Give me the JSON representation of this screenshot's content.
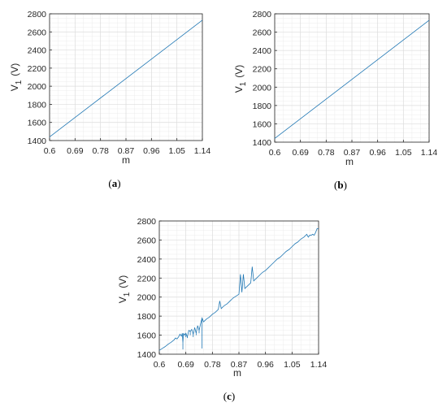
{
  "chart_data": [
    {
      "type": "line",
      "panel": "a",
      "caption": "(a)",
      "caption_letter": "a",
      "xlabel": "m",
      "ylabel_main": "V",
      "ylabel_sub": "1",
      "ylabel_unit": "(V)",
      "xlim": [
        0.6,
        1.14
      ],
      "ylim": [
        1400,
        2800
      ],
      "xticks": [
        0.6,
        0.69,
        0.78,
        0.87,
        0.96,
        1.05,
        1.14
      ],
      "xtick_labels": [
        "0.6",
        "0.69",
        "0.78",
        "0.87",
        "0.96",
        "1.05",
        "1.14"
      ],
      "yticks": [
        1400,
        1600,
        1800,
        2000,
        2200,
        2400,
        2600,
        2800
      ],
      "ytick_labels": [
        "1400",
        "1600",
        "1800",
        "2000",
        "2200",
        "2400",
        "2600",
        "2800"
      ],
      "grid": true,
      "series": [
        {
          "x": [
            0.6,
            1.14
          ],
          "y": [
            1440,
            2730
          ]
        }
      ]
    },
    {
      "type": "line",
      "panel": "b",
      "caption": "(b)",
      "caption_letter": "b",
      "xlabel": "m",
      "ylabel_main": "V",
      "ylabel_sub": "1",
      "ylabel_unit": "(V)",
      "xlim": [
        0.6,
        1.14
      ],
      "ylim": [
        1400,
        2800
      ],
      "xticks": [
        0.6,
        0.69,
        0.78,
        0.87,
        0.96,
        1.05,
        1.14
      ],
      "xtick_labels": [
        "0.6",
        "0.69",
        "0.78",
        "0.87",
        "0.96",
        "1.05",
        "1.14"
      ],
      "yticks": [
        1400,
        1600,
        1800,
        2000,
        2200,
        2400,
        2600,
        2800
      ],
      "ytick_labels": [
        "1400",
        "1600",
        "1800",
        "2000",
        "2200",
        "2400",
        "2600",
        "2800"
      ],
      "grid": true,
      "series": [
        {
          "x": [
            0.6,
            1.14
          ],
          "y": [
            1440,
            2730
          ]
        }
      ]
    },
    {
      "type": "line",
      "panel": "c",
      "caption": "(c)",
      "caption_letter": "c",
      "xlabel": "m",
      "ylabel_main": "V",
      "ylabel_sub": "1",
      "ylabel_unit": "(V)",
      "xlim": [
        0.6,
        1.14
      ],
      "ylim": [
        1400,
        2800
      ],
      "xticks": [
        0.6,
        0.69,
        0.78,
        0.87,
        0.96,
        1.05,
        1.14
      ],
      "xtick_labels": [
        "0.6",
        "0.69",
        "0.78",
        "0.87",
        "0.96",
        "1.05",
        "1.14"
      ],
      "yticks": [
        1400,
        1600,
        1800,
        2000,
        2200,
        2400,
        2600,
        2800
      ],
      "ytick_labels": [
        "1400",
        "1600",
        "1800",
        "2000",
        "2200",
        "2400",
        "2600",
        "2800"
      ],
      "grid": true,
      "series": [
        {
          "x": [
            0.6,
            0.61,
            0.62,
            0.63,
            0.64,
            0.65,
            0.655,
            0.66,
            0.665,
            0.67,
            0.675,
            0.678,
            0.68,
            0.682,
            0.685,
            0.69,
            0.695,
            0.7,
            0.705,
            0.71,
            0.715,
            0.72,
            0.725,
            0.73,
            0.735,
            0.74,
            0.745,
            0.75,
            0.76,
            0.77,
            0.78,
            0.79,
            0.8,
            0.805,
            0.81,
            0.82,
            0.83,
            0.84,
            0.85,
            0.86,
            0.87,
            0.875,
            0.88,
            0.885,
            0.89,
            0.9,
            0.91,
            0.915,
            0.92,
            0.93,
            0.94,
            0.95,
            0.96,
            0.97,
            0.98,
            0.99,
            1.0,
            1.01,
            1.02,
            1.03,
            1.04,
            1.05,
            1.06,
            1.07,
            1.08,
            1.09,
            1.1,
            1.105,
            1.11,
            1.115,
            1.12,
            1.125,
            1.13,
            1.135,
            1.14
          ],
          "y": [
            1440,
            1460,
            1480,
            1505,
            1525,
            1550,
            1570,
            1560,
            1580,
            1610,
            1590,
            1620,
            1520,
            1620,
            1600,
            1620,
            1580,
            1650,
            1640,
            1660,
            1610,
            1680,
            1620,
            1700,
            1650,
            1720,
            1780,
            1740,
            1770,
            1790,
            1820,
            1840,
            1870,
            1960,
            1880,
            1910,
            1930,
            1960,
            1990,
            2010,
            2030,
            2240,
            2050,
            2240,
            2090,
            2120,
            2150,
            2320,
            2170,
            2200,
            2230,
            2260,
            2280,
            2310,
            2340,
            2370,
            2400,
            2420,
            2450,
            2480,
            2500,
            2530,
            2560,
            2580,
            2610,
            2630,
            2660,
            2630,
            2650,
            2650,
            2660,
            2650,
            2680,
            2720,
            2720
          ]
        }
      ],
      "spikes": [
        {
          "x": 0.66,
          "y": 1560
        },
        {
          "x": 0.675,
          "y": 1590
        },
        {
          "x": 0.68,
          "y": 1450
        },
        {
          "x": 0.69,
          "y": 1580
        },
        {
          "x": 0.695,
          "y": 1570
        },
        {
          "x": 0.705,
          "y": 1600
        },
        {
          "x": 0.715,
          "y": 1580
        },
        {
          "x": 0.725,
          "y": 1600
        },
        {
          "x": 0.735,
          "y": 1620
        },
        {
          "x": 0.745,
          "y": 1460
        }
      ]
    }
  ]
}
